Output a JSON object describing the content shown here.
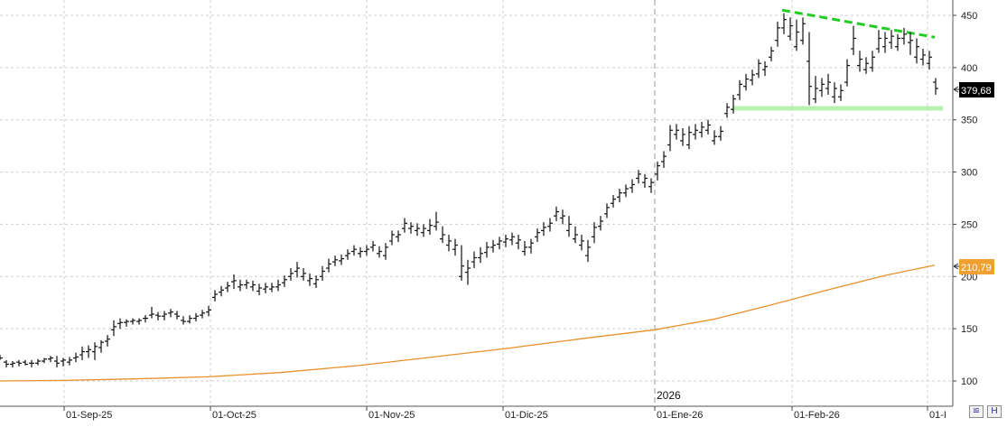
{
  "chart_data": {
    "type": "ohlc",
    "y_axis": {
      "ticks": [
        100,
        150,
        200,
        250,
        300,
        350,
        400,
        450
      ],
      "range": [
        88,
        462
      ],
      "position": "right"
    },
    "x_axis": {
      "tick_labels": [
        "01-Sep-25",
        "01-Oct-25",
        "01-Nov-25",
        "01-Dic-25",
        "01-Ene-26",
        "01-Feb-26",
        "01-I"
      ],
      "year_marker": "2026"
    },
    "price_label": "379,68",
    "ma_label": "210,79",
    "colors": {
      "price_bars": "#111111",
      "moving_average": "#e8902a",
      "ma_label_bg": "#f0a030",
      "price_label_bg": "#000000",
      "resistance_line": "#22cc22",
      "support_line": "#b8f0b0",
      "grid": "#cfcfcf"
    },
    "grid": "on",
    "moving_average": {
      "points": [
        [
          0,
          100
        ],
        [
          70,
          100.5
        ],
        [
          150,
          102
        ],
        [
          230,
          104
        ],
        [
          310,
          108
        ],
        [
          400,
          115
        ],
        [
          480,
          123
        ],
        [
          560,
          131
        ],
        [
          640,
          140
        ],
        [
          725,
          149
        ],
        [
          790,
          159
        ],
        [
          850,
          172
        ],
        [
          920,
          188
        ],
        [
          980,
          201
        ],
        [
          1035,
          210.8
        ]
      ]
    },
    "trend_lines": [
      {
        "name": "resistance",
        "from": [
          866,
          455
        ],
        "to": [
          1035,
          429
        ],
        "style": "dashed"
      },
      {
        "name": "support",
        "from": [
          812,
          361
        ],
        "to": [
          1044,
          361
        ],
        "style": "solid"
      }
    ],
    "ohlc": [
      [
        0,
        123,
        125,
        120,
        122
      ],
      [
        7,
        118,
        120,
        113,
        116
      ],
      [
        14,
        116,
        119,
        113,
        117
      ],
      [
        21,
        118,
        120,
        114,
        117
      ],
      [
        28,
        118,
        120,
        115,
        116
      ],
      [
        35,
        117,
        120,
        113,
        117
      ],
      [
        42,
        117,
        121,
        115,
        119
      ],
      [
        49,
        119,
        122,
        117,
        121
      ],
      [
        56,
        121,
        124,
        118,
        122
      ],
      [
        63,
        119,
        124,
        113,
        117
      ],
      [
        70,
        119,
        122,
        114,
        120
      ],
      [
        77,
        118,
        123,
        115,
        120
      ],
      [
        84,
        122,
        127,
        118,
        123
      ],
      [
        91,
        125,
        133,
        120,
        128
      ],
      [
        98,
        128,
        134,
        122,
        130
      ],
      [
        105,
        128,
        137,
        120,
        133
      ],
      [
        112,
        132,
        139,
        127,
        137
      ],
      [
        119,
        138,
        144,
        133,
        140
      ],
      [
        126,
        149,
        158,
        143,
        152
      ],
      [
        133,
        155,
        160,
        150,
        156
      ],
      [
        140,
        156,
        159,
        152,
        157
      ],
      [
        147,
        157,
        160,
        154,
        158
      ],
      [
        154,
        157,
        160,
        154,
        158
      ],
      [
        161,
        160,
        163,
        156,
        160
      ],
      [
        168,
        163,
        171,
        160,
        164
      ],
      [
        175,
        163,
        166,
        158,
        162
      ],
      [
        182,
        162,
        167,
        158,
        164
      ],
      [
        189,
        165,
        169,
        161,
        166
      ],
      [
        196,
        164,
        167,
        159,
        162
      ],
      [
        203,
        158,
        162,
        154,
        157
      ],
      [
        210,
        157,
        163,
        155,
        160
      ],
      [
        217,
        160,
        165,
        157,
        162
      ],
      [
        224,
        163,
        168,
        160,
        165
      ],
      [
        231,
        166,
        172,
        162,
        168
      ],
      [
        238,
        180,
        187,
        176,
        183
      ],
      [
        245,
        185,
        191,
        181,
        187
      ],
      [
        252,
        189,
        195,
        185,
        191
      ],
      [
        259,
        195,
        202,
        188,
        196
      ],
      [
        266,
        190,
        197,
        186,
        192
      ],
      [
        273,
        192,
        197,
        188,
        194
      ],
      [
        280,
        190,
        196,
        186,
        192
      ],
      [
        287,
        186,
        193,
        182,
        189
      ],
      [
        294,
        188,
        194,
        184,
        190
      ],
      [
        301,
        188,
        194,
        185,
        190
      ],
      [
        308,
        190,
        197,
        186,
        192
      ],
      [
        315,
        194,
        201,
        190,
        197
      ],
      [
        322,
        200,
        208,
        196,
        203
      ],
      [
        329,
        205,
        214,
        199,
        208
      ],
      [
        336,
        200,
        208,
        196,
        203
      ],
      [
        343,
        196,
        203,
        191,
        198
      ],
      [
        350,
        193,
        201,
        189,
        197
      ],
      [
        357,
        200,
        210,
        196,
        205
      ],
      [
        364,
        208,
        217,
        204,
        212
      ],
      [
        371,
        214,
        220,
        210,
        216
      ],
      [
        378,
        215,
        221,
        211,
        217
      ],
      [
        385,
        220,
        226,
        216,
        222
      ],
      [
        392,
        224,
        230,
        220,
        226
      ],
      [
        399,
        222,
        228,
        218,
        224
      ],
      [
        406,
        224,
        230,
        220,
        226
      ],
      [
        413,
        228,
        234,
        224,
        230
      ],
      [
        420,
        222,
        229,
        218,
        224
      ],
      [
        427,
        220,
        232,
        216,
        228
      ],
      [
        434,
        234,
        244,
        230,
        240
      ],
      [
        441,
        238,
        244,
        233,
        240
      ],
      [
        448,
        246,
        256,
        242,
        251
      ],
      [
        455,
        246,
        252,
        241,
        248
      ],
      [
        462,
        244,
        251,
        239,
        246
      ],
      [
        469,
        242,
        250,
        238,
        246
      ],
      [
        476,
        244,
        255,
        240,
        249
      ],
      [
        483,
        248,
        262,
        244,
        252
      ],
      [
        490,
        236,
        248,
        232,
        240
      ],
      [
        497,
        230,
        240,
        224,
        234
      ],
      [
        504,
        226,
        236,
        220,
        230
      ],
      [
        511,
        200,
        230,
        196,
        210
      ],
      [
        518,
        204,
        216,
        192,
        208
      ],
      [
        525,
        214,
        224,
        208,
        218
      ],
      [
        532,
        218,
        228,
        213,
        222
      ],
      [
        539,
        223,
        233,
        218,
        228
      ],
      [
        546,
        228,
        235,
        223,
        230
      ],
      [
        553,
        231,
        238,
        226,
        234
      ],
      [
        560,
        233,
        240,
        228,
        236
      ],
      [
        567,
        235,
        242,
        230,
        238
      ],
      [
        574,
        232,
        240,
        226,
        235
      ],
      [
        581,
        224,
        234,
        220,
        228
      ],
      [
        588,
        228,
        236,
        222,
        232
      ],
      [
        595,
        238,
        246,
        233,
        242
      ],
      [
        602,
        244,
        252,
        239,
        247
      ],
      [
        609,
        248,
        256,
        243,
        251
      ],
      [
        616,
        258,
        267,
        253,
        262
      ],
      [
        623,
        256,
        264,
        250,
        258
      ],
      [
        630,
        244,
        258,
        238,
        250
      ],
      [
        637,
        236,
        248,
        232,
        240
      ],
      [
        644,
        230,
        240,
        225,
        234
      ],
      [
        651,
        220,
        235,
        214,
        228
      ],
      [
        658,
        238,
        252,
        232,
        247
      ],
      [
        665,
        248,
        258,
        244,
        253
      ],
      [
        672,
        260,
        270,
        256,
        266
      ],
      [
        679,
        270,
        278,
        266,
        274
      ],
      [
        686,
        276,
        284,
        271,
        280
      ],
      [
        693,
        280,
        288,
        276,
        284
      ],
      [
        700,
        285,
        293,
        280,
        288
      ],
      [
        707,
        294,
        302,
        289,
        298
      ],
      [
        714,
        290,
        298,
        285,
        294
      ],
      [
        721,
        286,
        294,
        280,
        290
      ],
      [
        728,
        298,
        310,
        292,
        306
      ],
      [
        735,
        310,
        320,
        304,
        315
      ],
      [
        742,
        326,
        345,
        320,
        340
      ],
      [
        749,
        336,
        346,
        331,
        340
      ],
      [
        756,
        330,
        342,
        325,
        336
      ],
      [
        763,
        326,
        344,
        322,
        338
      ],
      [
        770,
        336,
        346,
        331,
        340
      ],
      [
        777,
        338,
        348,
        333,
        343
      ],
      [
        784,
        340,
        350,
        336,
        345
      ],
      [
        791,
        330,
        340,
        326,
        334
      ],
      [
        798,
        334,
        344,
        330,
        339
      ],
      [
        805,
        356,
        366,
        352,
        362
      ],
      [
        812,
        360,
        374,
        356,
        370
      ],
      [
        819,
        374,
        388,
        369,
        384
      ],
      [
        826,
        382,
        394,
        378,
        389
      ],
      [
        833,
        388,
        398,
        383,
        393
      ],
      [
        840,
        394,
        408,
        390,
        404
      ],
      [
        847,
        398,
        406,
        392,
        401
      ],
      [
        854,
        410,
        420,
        406,
        416
      ],
      [
        861,
        426,
        444,
        420,
        438
      ],
      [
        868,
        438,
        452,
        432,
        446
      ],
      [
        875,
        430,
        448,
        426,
        440
      ],
      [
        882,
        420,
        446,
        416,
        434
      ],
      [
        889,
        426,
        448,
        422,
        442
      ],
      [
        896,
        406,
        434,
        364,
        382
      ],
      [
        903,
        370,
        392,
        366,
        380
      ],
      [
        910,
        378,
        390,
        372,
        384
      ],
      [
        917,
        380,
        394,
        374,
        386
      ],
      [
        924,
        372,
        386,
        366,
        380
      ],
      [
        931,
        372,
        384,
        368,
        378
      ],
      [
        938,
        386,
        408,
        382,
        402
      ],
      [
        945,
        418,
        440,
        412,
        428
      ],
      [
        952,
        402,
        416,
        396,
        408
      ],
      [
        959,
        398,
        410,
        394,
        404
      ],
      [
        966,
        400,
        416,
        396,
        410
      ],
      [
        973,
        418,
        436,
        414,
        428
      ],
      [
        980,
        420,
        434,
        414,
        428
      ],
      [
        987,
        424,
        436,
        418,
        430
      ],
      [
        994,
        420,
        432,
        416,
        428
      ],
      [
        1001,
        428,
        438,
        422,
        432
      ],
      [
        1008,
        424,
        434,
        412,
        426
      ],
      [
        1015,
        410,
        428,
        404,
        420
      ],
      [
        1022,
        408,
        418,
        402,
        412
      ],
      [
        1029,
        404,
        416,
        398,
        410
      ],
      [
        1036,
        386,
        390,
        374,
        380
      ]
    ]
  }
}
